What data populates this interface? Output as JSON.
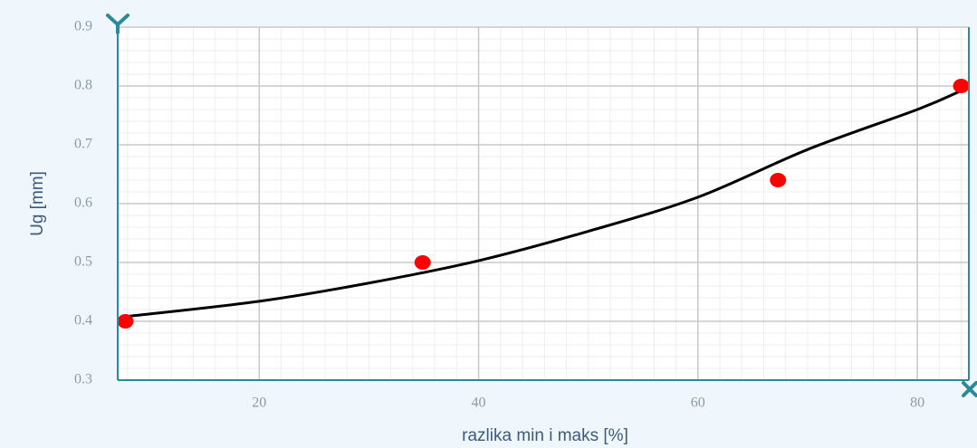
{
  "chart_data": {
    "type": "scatter",
    "xlabel": "razlika min i maks [%]",
    "ylabel": "Ug [mm]",
    "xlim": [
      7.1,
      84.7
    ],
    "ylim": [
      0.3,
      0.9
    ],
    "xticks": [
      20,
      40,
      60,
      80
    ],
    "yticks": [
      0.3,
      0.4,
      0.5,
      0.6,
      0.7,
      0.8,
      0.9
    ],
    "grid": true,
    "series": [
      {
        "mode": "line",
        "color": "#000000",
        "x": [
          7.8,
          20,
          30,
          40,
          50,
          60,
          70,
          80,
          84
        ],
        "values": [
          0.408,
          0.434,
          0.465,
          0.503,
          0.553,
          0.611,
          0.692,
          0.76,
          0.792
        ]
      },
      {
        "mode": "markers",
        "color": "#ff0000",
        "x": [
          7.8,
          34.9,
          67.3,
          84.0
        ],
        "values": [
          0.4,
          0.5,
          0.64,
          0.8
        ]
      }
    ]
  }
}
